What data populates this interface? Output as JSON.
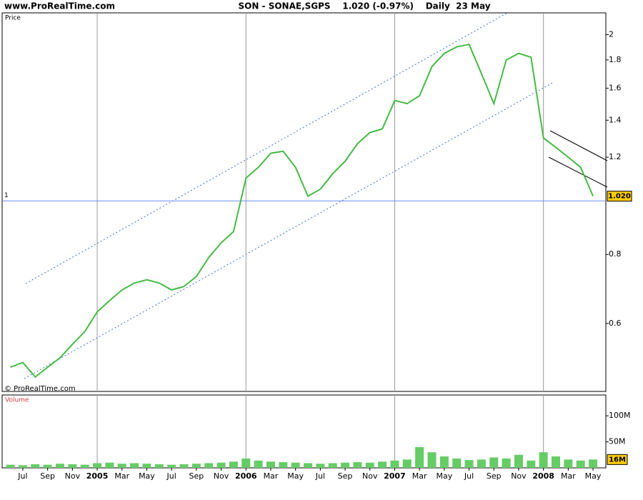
{
  "site": "www.ProRealTime.com",
  "header": "SON - SONAE,SGPS    1.020 (-0.97%)    Daily  23 May",
  "copyright": "© ProRealTime.com",
  "chart_data": [
    {
      "type": "line",
      "title": "Price",
      "log_scale": true,
      "x": [
        "2004-06",
        "2004-07",
        "2004-08",
        "2004-09",
        "2004-10",
        "2004-11",
        "2004-12",
        "2005-01",
        "2005-02",
        "2005-03",
        "2005-04",
        "2005-05",
        "2005-06",
        "2005-07",
        "2005-08",
        "2005-09",
        "2005-10",
        "2005-11",
        "2005-12",
        "2006-01",
        "2006-02",
        "2006-03",
        "2006-04",
        "2006-05",
        "2006-06",
        "2006-07",
        "2006-08",
        "2006-09",
        "2006-10",
        "2006-11",
        "2006-12",
        "2007-01",
        "2007-02",
        "2007-03",
        "2007-04",
        "2007-05",
        "2007-06",
        "2007-07",
        "2007-08",
        "2007-09",
        "2007-10",
        "2007-11",
        "2007-12",
        "2008-01",
        "2008-02",
        "2008-03",
        "2008-04",
        "2008-05"
      ],
      "series": [
        {
          "name": "SON",
          "color": "#44bb44",
          "values": [
            0.5,
            0.51,
            0.48,
            0.5,
            0.52,
            0.55,
            0.58,
            0.63,
            0.66,
            0.69,
            0.71,
            0.72,
            0.71,
            0.69,
            0.7,
            0.73,
            0.79,
            0.84,
            0.88,
            1.1,
            1.15,
            1.22,
            1.23,
            1.15,
            1.02,
            1.05,
            1.12,
            1.18,
            1.27,
            1.33,
            1.35,
            1.52,
            1.5,
            1.55,
            1.75,
            1.85,
            1.9,
            1.92,
            1.7,
            1.5,
            1.8,
            1.85,
            1.82,
            1.3,
            1.25,
            1.2,
            1.15,
            1.02
          ]
        }
      ],
      "ylim": [
        0.452,
        2.19
      ],
      "yticks": [
        0.6,
        0.8,
        1.2,
        1.4,
        1.6,
        1.8,
        2
      ],
      "reference_line": 1,
      "last_value": 1.02,
      "last_value_label": "1.020"
    },
    {
      "type": "bar",
      "title": "Volume",
      "x": [
        "2004-06",
        "2004-07",
        "2004-08",
        "2004-09",
        "2004-10",
        "2004-11",
        "2004-12",
        "2005-01",
        "2005-02",
        "2005-03",
        "2005-04",
        "2005-05",
        "2005-06",
        "2005-07",
        "2005-08",
        "2005-09",
        "2005-10",
        "2005-11",
        "2005-12",
        "2006-01",
        "2006-02",
        "2006-03",
        "2006-04",
        "2006-05",
        "2006-06",
        "2006-07",
        "2006-08",
        "2006-09",
        "2006-10",
        "2006-11",
        "2006-12",
        "2007-01",
        "2007-02",
        "2007-03",
        "2007-04",
        "2007-05",
        "2007-06",
        "2007-07",
        "2007-08",
        "2007-09",
        "2007-10",
        "2007-11",
        "2007-12",
        "2008-01",
        "2008-02",
        "2008-03",
        "2008-04",
        "2008-05"
      ],
      "series": [
        {
          "name": "Volume",
          "color": "#66cc66",
          "values": [
            6000000,
            5000000,
            7000000,
            6000000,
            8000000,
            7000000,
            6000000,
            9000000,
            10000000,
            8000000,
            9000000,
            8000000,
            7000000,
            6000000,
            7000000,
            8000000,
            9000000,
            10000000,
            12000000,
            18000000,
            14000000,
            12000000,
            11000000,
            10000000,
            9000000,
            8000000,
            9000000,
            10000000,
            11000000,
            10000000,
            12000000,
            14000000,
            16000000,
            40000000,
            30000000,
            22000000,
            18000000,
            15000000,
            16000000,
            20000000,
            18000000,
            25000000,
            14000000,
            30000000,
            22000000,
            16000000,
            14000000,
            16000000
          ],
          "value_labels": [
            null,
            null,
            null,
            null,
            null,
            null,
            null,
            null,
            null,
            null,
            null,
            null,
            null,
            null,
            null,
            null,
            null,
            null,
            null,
            null,
            null,
            null,
            null,
            null,
            null,
            null,
            null,
            null,
            null,
            null,
            null,
            null,
            null,
            null,
            null,
            null,
            null,
            null,
            null,
            null,
            null,
            null,
            null,
            null,
            null,
            null,
            null,
            "16M"
          ]
        }
      ],
      "ylim": [
        0,
        140000000
      ],
      "yticks": [
        {
          "value": 50000000,
          "label": "50M"
        },
        {
          "value": 100000000,
          "label": "100M"
        }
      ],
      "xticks": [
        {
          "value": "2004-07",
          "label": "Jul"
        },
        {
          "value": "2004-09",
          "label": "Sep"
        },
        {
          "value": "2004-11",
          "label": "Nov"
        },
        {
          "value": "2005-01",
          "label": "2005"
        },
        {
          "value": "2005-03",
          "label": "Mar"
        },
        {
          "value": "2005-05",
          "label": "May"
        },
        {
          "value": "2005-07",
          "label": "Jul"
        },
        {
          "value": "2005-09",
          "label": "Sep"
        },
        {
          "value": "2005-11",
          "label": "Nov"
        },
        {
          "value": "2006-01",
          "label": "2006"
        },
        {
          "value": "2006-03",
          "label": "Mar"
        },
        {
          "value": "2006-05",
          "label": "May"
        },
        {
          "value": "2006-07",
          "label": "Jul"
        },
        {
          "value": "2006-09",
          "label": "Sep"
        },
        {
          "value": "2006-11",
          "label": "Nov"
        },
        {
          "value": "2007-01",
          "label": "2007"
        },
        {
          "value": "2007-03",
          "label": "Mar"
        },
        {
          "value": "2007-05",
          "label": "May"
        },
        {
          "value": "2007-07",
          "label": "Jul"
        },
        {
          "value": "2007-09",
          "label": "Sep"
        },
        {
          "value": "2007-11",
          "label": "Nov"
        },
        {
          "value": "2008-01",
          "label": "2008"
        },
        {
          "value": "2008-03",
          "label": "Mar"
        },
        {
          "value": "2008-05",
          "label": "May"
        }
      ]
    }
  ]
}
